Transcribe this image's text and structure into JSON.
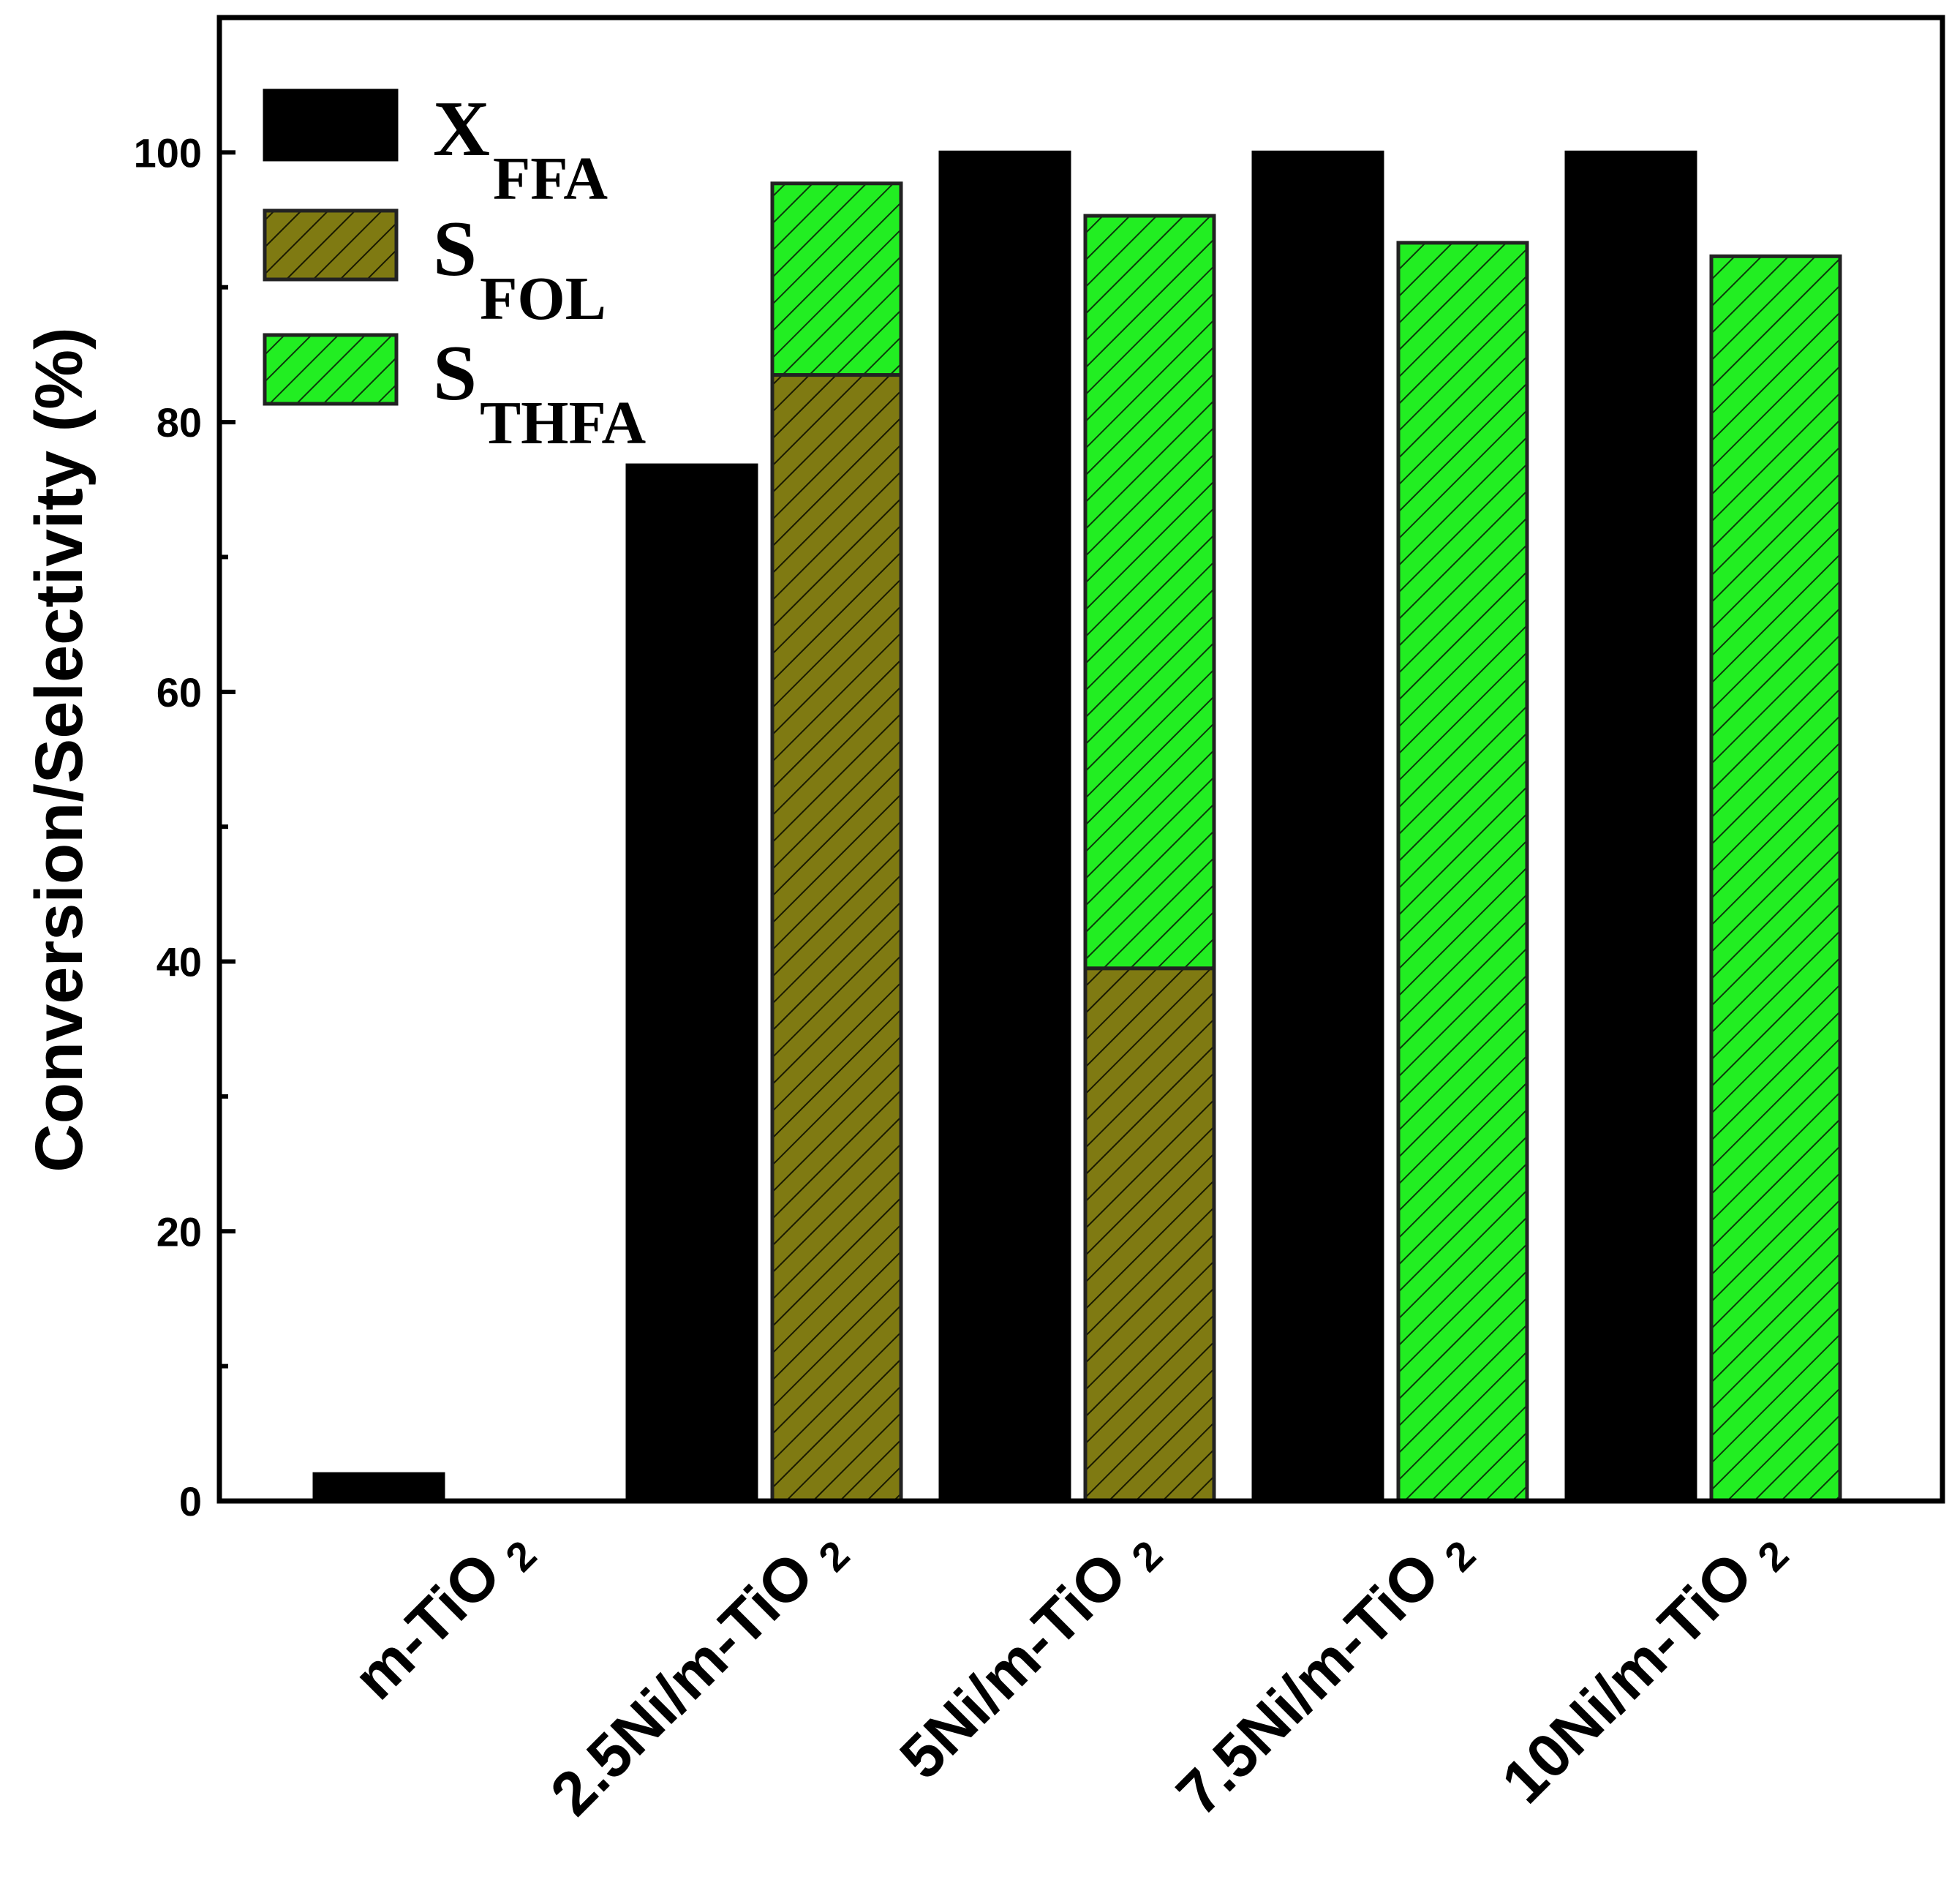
{
  "chart_data": {
    "type": "bar",
    "title": "",
    "xlabel": "",
    "ylabel": "Conversion/Selectivity (%)",
    "ylim": [
      0,
      110
    ],
    "yticks": [
      0,
      20,
      40,
      60,
      80,
      100
    ],
    "categories": [
      {
        "main": "m-TiO",
        "sub": "2"
      },
      {
        "main": "2.5Ni/m-TiO",
        "sub": "2"
      },
      {
        "main": "5Ni/m-TiO",
        "sub": "2"
      },
      {
        "main": "7.5Ni/m-TiO",
        "sub": "2"
      },
      {
        "main": "10Ni/m-TiO",
        "sub": "2"
      }
    ],
    "series": [
      {
        "name": "X",
        "subscript": "FFA",
        "values": [
          2,
          76.8,
          100,
          100,
          100
        ],
        "color": "#000000",
        "pattern": "solid",
        "stack": "conversion"
      },
      {
        "name": "S",
        "subscript": "FOL",
        "values": [
          0,
          83.5,
          39.5,
          0,
          0
        ],
        "color": "#7f7a12",
        "pattern": "hatch",
        "stack": "selectivity"
      },
      {
        "name": "S",
        "subscript": "THFA",
        "values": [
          0,
          14.2,
          55.8,
          93.3,
          92.3
        ],
        "color": "#22ee22",
        "pattern": "hatch",
        "stack": "selectivity"
      }
    ],
    "legend_position": "top-left",
    "grid": false
  }
}
